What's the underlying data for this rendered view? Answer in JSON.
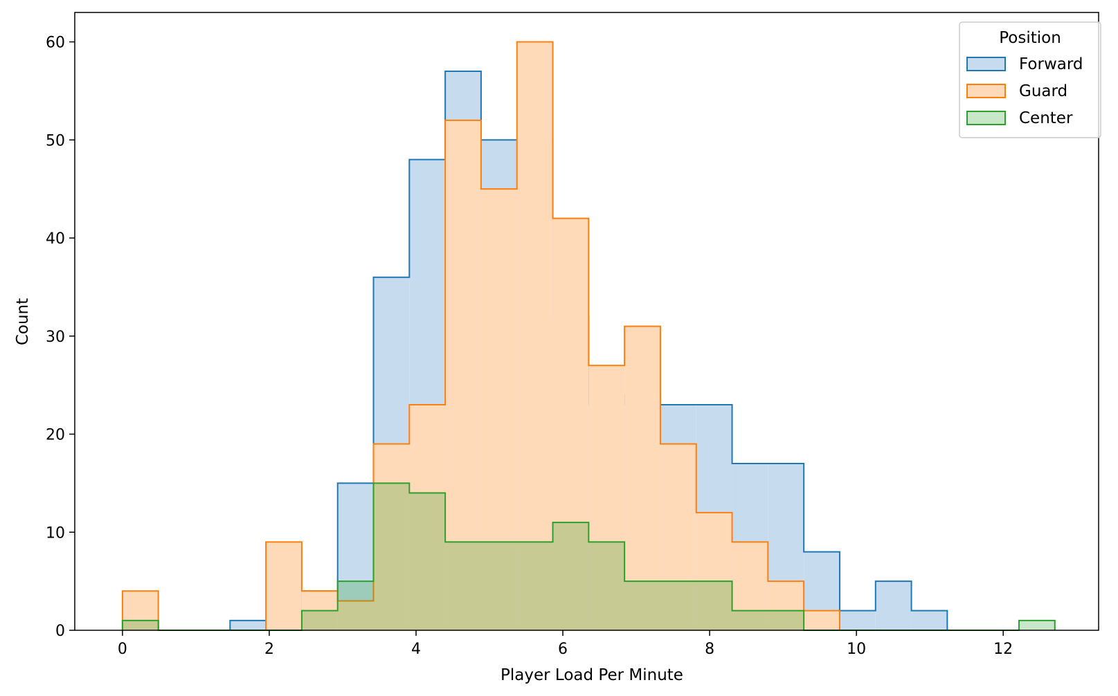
{
  "chart_data": {
    "type": "histogram",
    "xlabel": "Player Load Per Minute",
    "ylabel": "Count",
    "xlim": [
      -0.65,
      13.3
    ],
    "ylim": [
      0,
      63
    ],
    "xticks": [
      0,
      2,
      4,
      6,
      8,
      10,
      12
    ],
    "yticks": [
      0,
      10,
      20,
      30,
      40,
      50,
      60
    ],
    "bin_start": 0,
    "bin_width": 0.4886,
    "grid": false,
    "legend": {
      "title": "Position",
      "placement": "top-right"
    },
    "series": [
      {
        "name": "Forward",
        "color": "#1f77b4",
        "fill": "#c6dcee",
        "values": [
          1,
          0,
          0,
          1,
          1,
          4,
          15,
          36,
          48,
          57,
          50,
          50,
          32,
          23,
          24,
          23,
          23,
          17,
          17,
          8,
          2,
          5,
          2,
          0,
          0,
          0
        ]
      },
      {
        "name": "Guard",
        "color": "#ff7f0e",
        "fill": "#ffdab9",
        "values": [
          4,
          0,
          0,
          0,
          9,
          4,
          3,
          19,
          23,
          52,
          45,
          60,
          42,
          27,
          31,
          19,
          12,
          9,
          5,
          2,
          0,
          0,
          0,
          0,
          0,
          0
        ]
      },
      {
        "name": "Center",
        "color": "#2ca02c",
        "fill": "rgba(44,160,44,0.26)",
        "values": [
          1,
          0,
          0,
          0,
          0,
          2,
          5,
          15,
          14,
          9,
          9,
          9,
          11,
          9,
          5,
          5,
          5,
          2,
          2,
          0,
          0,
          0,
          0,
          0,
          0,
          1
        ]
      }
    ]
  }
}
